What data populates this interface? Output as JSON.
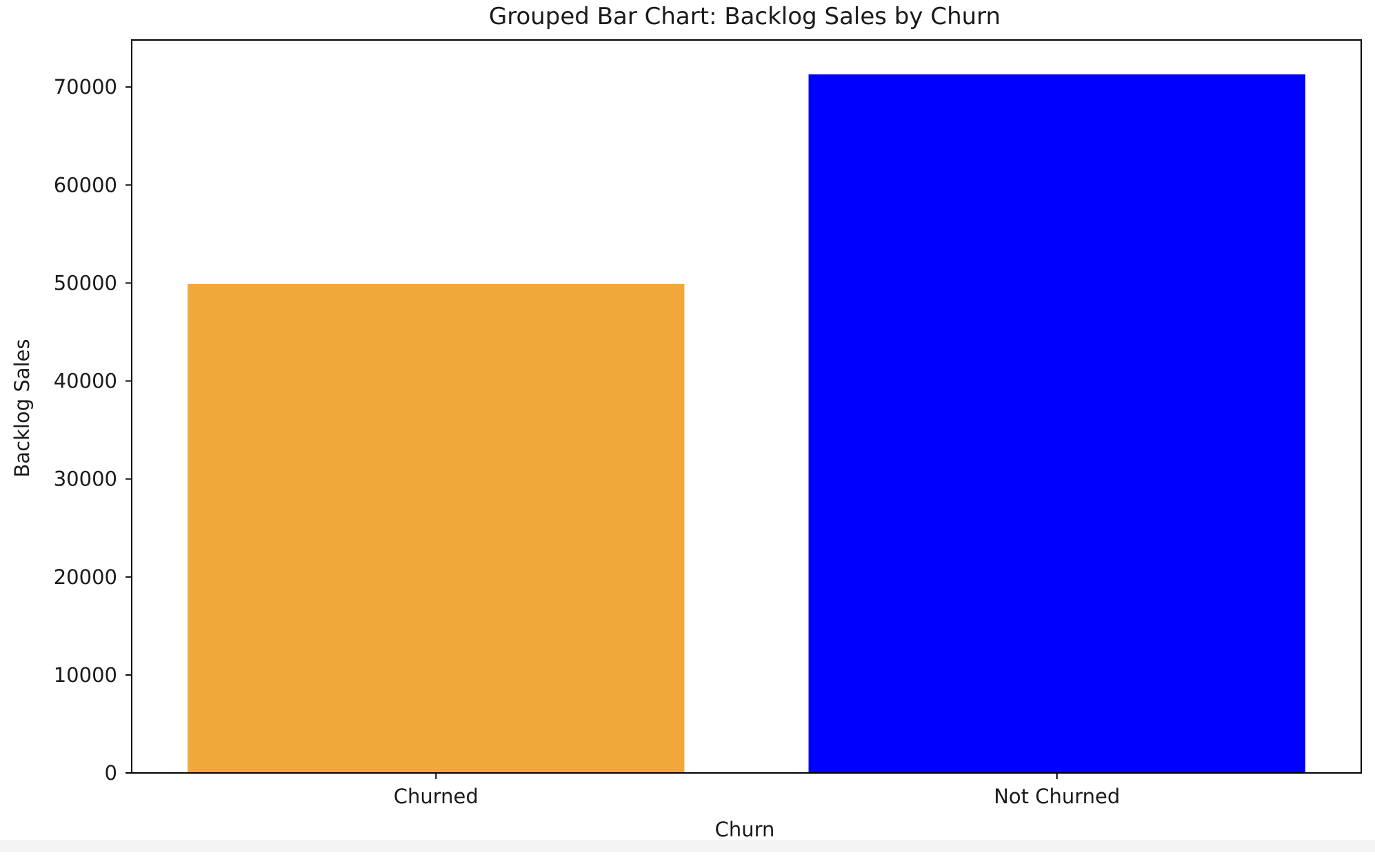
{
  "chart_data": {
    "type": "bar",
    "title": "Grouped Bar Chart: Backlog Sales by Churn",
    "xlabel": "Churn",
    "ylabel": "Backlog Sales",
    "categories": [
      "Churned",
      "Not Churned"
    ],
    "values": [
      49900,
      71300
    ],
    "colors": [
      "#f0a83b",
      "#0000ff"
    ],
    "ylim": [
      0,
      74800
    ],
    "yticks": [
      0,
      10000,
      20000,
      30000,
      40000,
      50000,
      60000,
      70000
    ],
    "ytick_labels": [
      "0",
      "10000",
      "20000",
      "30000",
      "40000",
      "50000",
      "60000",
      "70000"
    ],
    "grid": false,
    "legend": "none"
  }
}
